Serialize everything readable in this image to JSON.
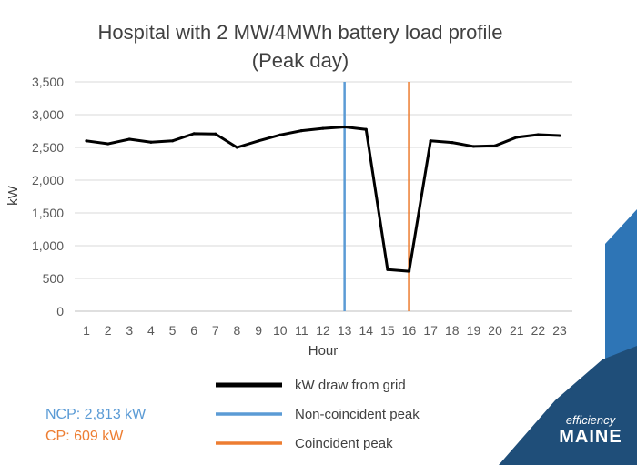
{
  "chart_data": {
    "type": "line",
    "title": "Hospital with 2 MW/4MWh battery load profile",
    "subtitle": "(Peak day)",
    "xlabel": "Hour",
    "ylabel": "kW",
    "x": [
      1,
      2,
      3,
      4,
      5,
      6,
      7,
      8,
      9,
      10,
      11,
      12,
      13,
      14,
      15,
      16,
      17,
      18,
      19,
      20,
      21,
      22,
      23
    ],
    "ylim": [
      0,
      3500
    ],
    "yticks": [
      0,
      500,
      1000,
      1500,
      2000,
      2500,
      3000,
      3500
    ],
    "ytick_labels": [
      "0",
      "500",
      "1,000",
      "1,500",
      "2,000",
      "2,500",
      "3,000",
      "3,500"
    ],
    "xtick_labels": [
      "1",
      "2",
      "3",
      "4",
      "5",
      "6",
      "7",
      "8",
      "9",
      "10",
      "11",
      "12",
      "13",
      "14",
      "15",
      "16",
      "17",
      "18",
      "19",
      "20",
      "21",
      "22",
      "23"
    ],
    "series": [
      {
        "name": "kW draw from grid",
        "color": "#000000",
        "values": [
          2600,
          2555,
          2625,
          2580,
          2600,
          2710,
          2705,
          2500,
          2600,
          2690,
          2755,
          2790,
          2813,
          2775,
          635,
          609,
          2600,
          2575,
          2515,
          2525,
          2655,
          2695,
          2680
        ]
      }
    ],
    "vlines": [
      {
        "name": "Non-coincident peak",
        "x": 13,
        "color": "#5B9BD5"
      },
      {
        "name": "Coincident peak",
        "x": 16,
        "color": "#ED7D31"
      }
    ],
    "grid": true,
    "legend": "bottom"
  },
  "notes": {
    "ncp": "NCP: 2,813 kW",
    "ncp_color": "#5B9BD5",
    "cp": "CP: 609 kW",
    "cp_color": "#ED7D31"
  },
  "logo": {
    "line1": "efficiency",
    "line2": "MAINE"
  },
  "colors": {
    "brand_dark": "#1F4E79",
    "brand_mid": "#2E75B6"
  }
}
